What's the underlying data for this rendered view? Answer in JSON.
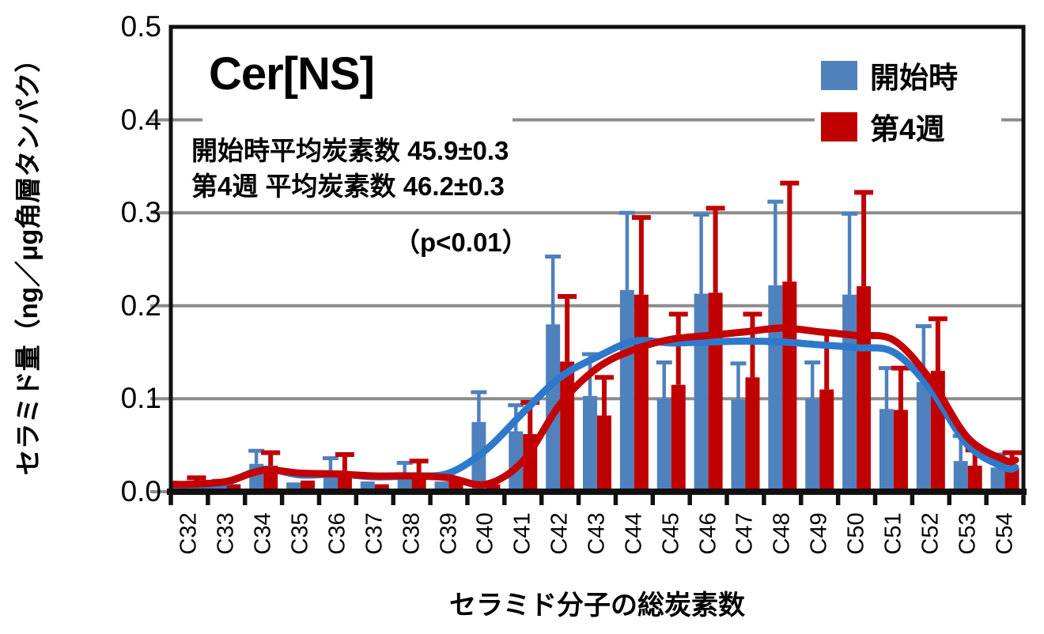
{
  "figure": {
    "title": "Cer[NS]",
    "annotation_line1": "開始時平均炭素数 45.9±0.3",
    "annotation_line2": "第4週 平均炭素数 46.2±0.3",
    "p_value": "（p<0.01）",
    "x_axis_title": "セラミド分子の総炭素数",
    "y_axis_title": "セラミド量（ng／μg角層タンパク）"
  },
  "legend": {
    "items": [
      {
        "label": "開始時",
        "color": "#4F81BD"
      },
      {
        "label": "第4週",
        "color": "#C00000"
      }
    ]
  },
  "colors": {
    "start_bar": "#4F81BD",
    "week4_bar": "#C00000",
    "start_line": "#2E79CC",
    "week4_line": "#C40000",
    "gridline": "#8C8C8C",
    "axis": "#111111"
  },
  "chart_data": {
    "type": "bar",
    "title": "Cer[NS]",
    "xlabel": "セラミド分子の総炭素数",
    "ylabel": "セラミド量（ng／μg角層タンパク）",
    "ylim": [
      0,
      0.5
    ],
    "y_ticks": [
      "0.0",
      "0.1",
      "0.2",
      "0.3",
      "0.4",
      "0.5"
    ],
    "grid": true,
    "legend_position": "top-right",
    "categories": [
      "C32",
      "C33",
      "C34",
      "C35",
      "C36",
      "C37",
      "C38",
      "C39",
      "C40",
      "C41",
      "C42",
      "C43",
      "C44",
      "C45",
      "C46",
      "C47",
      "C48",
      "C49",
      "C50",
      "C51",
      "C52",
      "C53",
      "C54"
    ],
    "series": [
      {
        "name": "開始時",
        "type": "bar",
        "color": "#4F81BD",
        "values": [
          0.01,
          0.014,
          0.03,
          0.01,
          0.021,
          0.011,
          0.016,
          0.011,
          0.075,
          0.065,
          0.18,
          0.103,
          0.217,
          0.1,
          0.213,
          0.099,
          0.222,
          0.1,
          0.212,
          0.089,
          0.118,
          0.033,
          0.026
        ],
        "error_upper": [
          null,
          null,
          0.044,
          null,
          0.036,
          null,
          0.031,
          null,
          0.107,
          0.093,
          0.253,
          0.148,
          0.3,
          0.139,
          0.298,
          0.138,
          0.312,
          0.139,
          0.299,
          0.133,
          0.178,
          0.06,
          0.04
        ]
      },
      {
        "name": "第4週",
        "type": "bar",
        "color": "#C00000",
        "values": [
          0.008,
          0.008,
          0.028,
          0.012,
          0.02,
          0.008,
          0.018,
          0.013,
          0.008,
          0.062,
          0.14,
          0.082,
          0.212,
          0.115,
          0.214,
          0.123,
          0.226,
          0.11,
          0.221,
          0.088,
          0.13,
          0.028,
          0.026
        ],
        "error_upper": [
          0.015,
          null,
          0.042,
          null,
          0.04,
          null,
          0.033,
          null,
          null,
          0.096,
          0.21,
          0.123,
          0.295,
          0.191,
          0.305,
          0.191,
          0.332,
          0.172,
          0.322,
          0.133,
          0.186,
          0.045,
          0.042
        ]
      },
      {
        "name": "開始時-smoothed-line",
        "type": "line",
        "color": "#2E79CC",
        "values": [
          0.005,
          0.01,
          0.024,
          0.018,
          0.019,
          0.016,
          0.017,
          0.02,
          0.045,
          0.085,
          0.123,
          0.145,
          0.162,
          0.16,
          0.161,
          0.162,
          0.161,
          0.158,
          0.155,
          0.15,
          0.11,
          0.05,
          0.026
        ]
      },
      {
        "name": "第4週-smoothed-line",
        "type": "line",
        "color": "#C40000",
        "values": [
          0.008,
          0.011,
          0.023,
          0.02,
          0.019,
          0.017,
          0.017,
          0.015,
          0.008,
          0.033,
          0.094,
          0.133,
          0.153,
          0.164,
          0.168,
          0.172,
          0.176,
          0.172,
          0.168,
          0.163,
          0.12,
          0.058,
          0.034
        ]
      }
    ]
  }
}
